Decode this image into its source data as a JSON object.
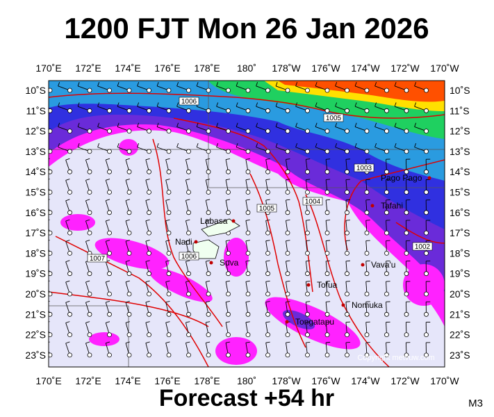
{
  "title": "1200 FJT Mon 26 Jan 2026",
  "footer": "Forecast +54 hr",
  "badge": "M3",
  "copyright": "Copyright metvuw.com",
  "lon_labels": [
    "170˚E",
    "172˚E",
    "174˚E",
    "176˚E",
    "178˚E",
    "180˚",
    "178˚W",
    "176˚W",
    "174˚W",
    "172˚W",
    "170˚W"
  ],
  "lat_labels": [
    "10˚S",
    "11˚S",
    "12˚S",
    "13˚S",
    "14˚S",
    "15˚S",
    "16˚S",
    "17˚S",
    "18˚S",
    "19˚S",
    "20˚S",
    "21˚S",
    "22˚S",
    "23˚S"
  ],
  "places": [
    "Labasa",
    "Nadi",
    "Suva",
    "Pago Pago",
    "Tafahi",
    "Vava'u",
    "Tofua",
    "Nomuka",
    "Tongatapu"
  ],
  "isobar_labels": [
    "1006",
    "1005",
    "1003",
    "1004",
    "1005",
    "1002",
    "1006",
    "1007"
  ]
}
